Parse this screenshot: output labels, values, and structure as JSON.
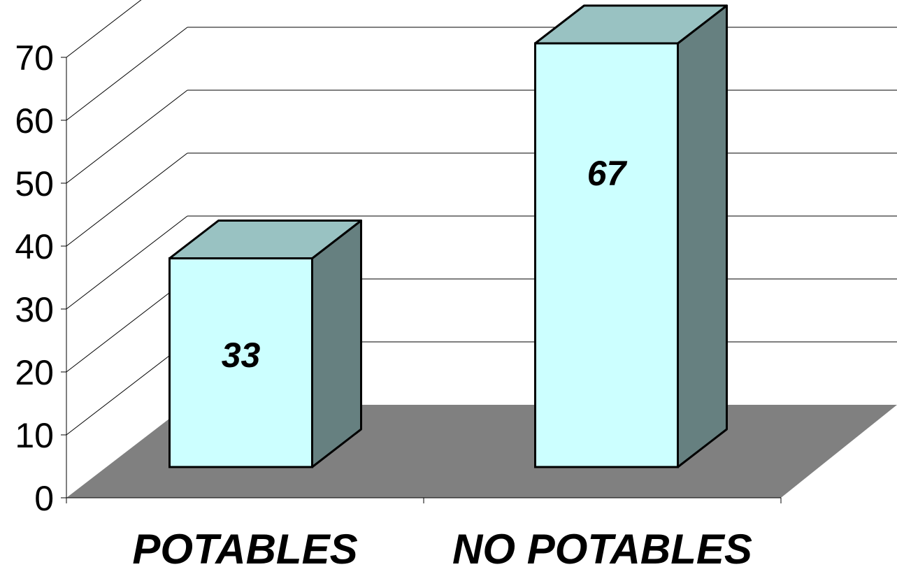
{
  "chart_data": {
    "type": "bar",
    "style": "3d-column",
    "categories": [
      "POTABLES",
      "NO POTABLES"
    ],
    "values": [
      33,
      67
    ],
    "data_labels": [
      "33",
      "67"
    ],
    "y_ticks": [
      "0",
      "10",
      "20",
      "30",
      "40",
      "50",
      "60",
      "70"
    ],
    "ylim": [
      0,
      70
    ],
    "grid": true,
    "legend": "none",
    "colors": {
      "bar_front": "#ccffff",
      "bar_top": "#99c2c2",
      "bar_side": "#668080",
      "floor": "#808080",
      "grid": "#000000"
    }
  }
}
